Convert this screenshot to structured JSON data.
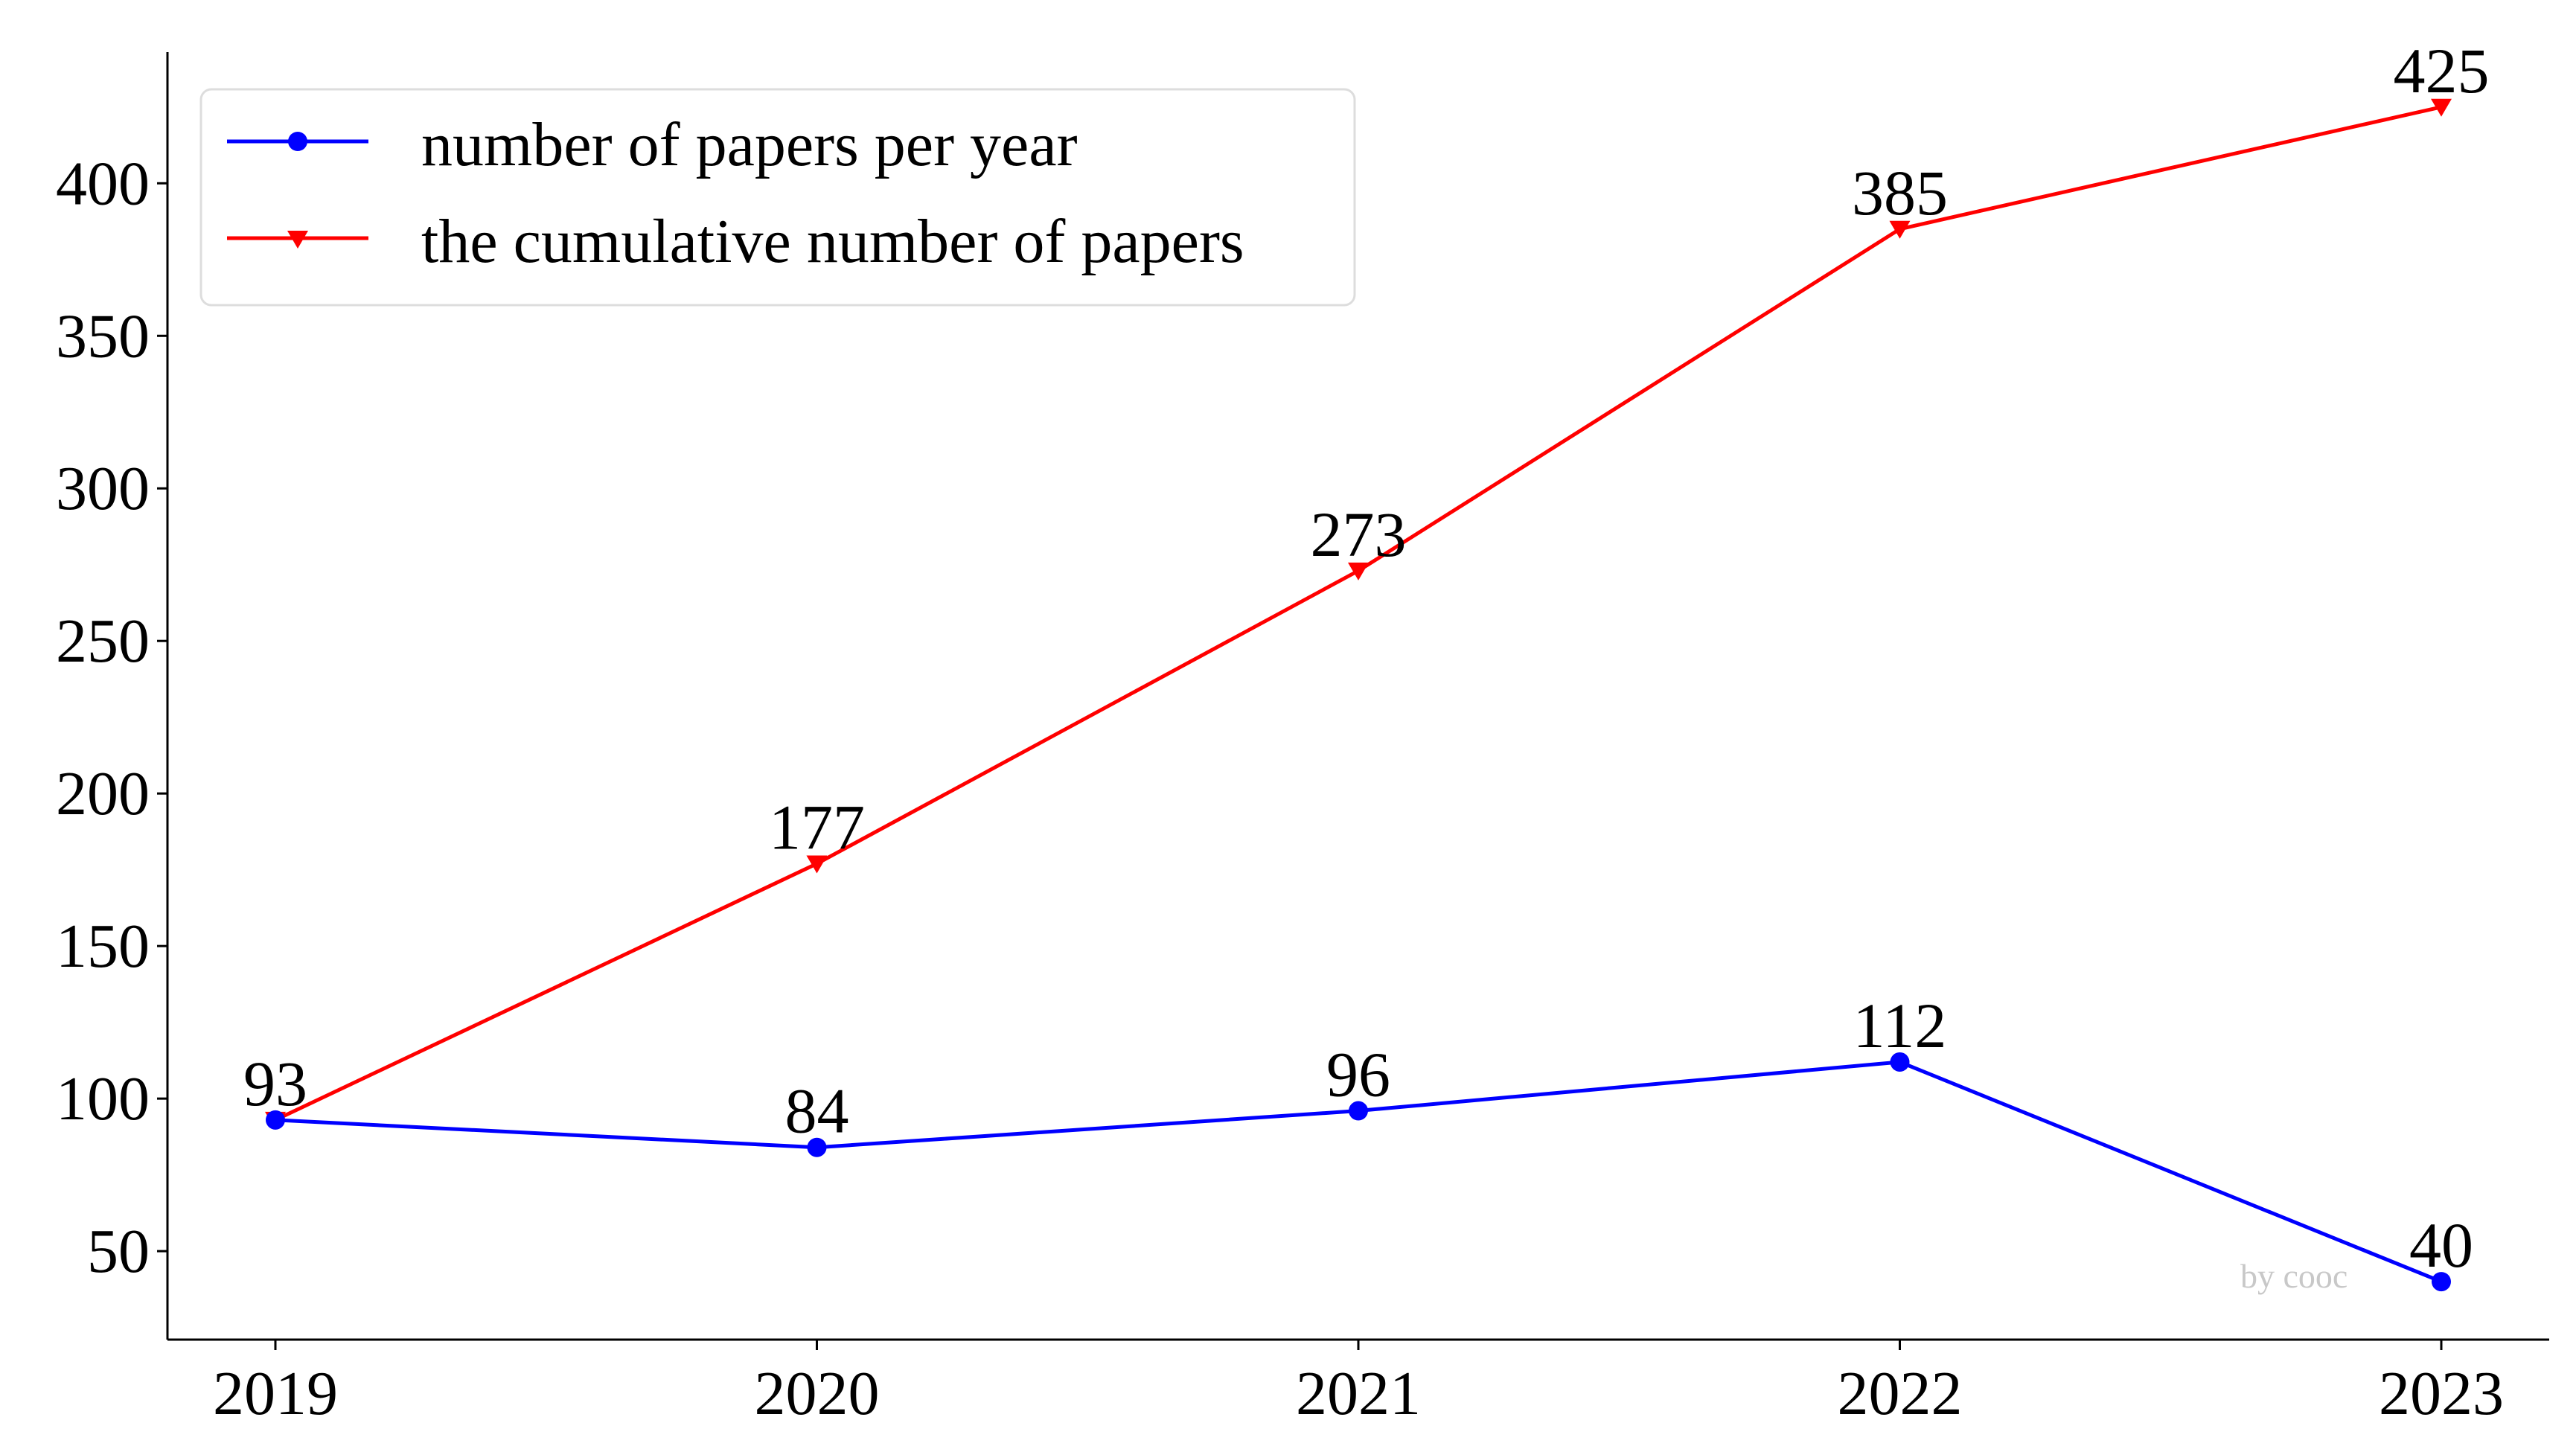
{
  "chart_data": {
    "type": "line",
    "title": "",
    "xlabel": "",
    "ylabel": "",
    "categories": [
      "2019",
      "2020",
      "2021",
      "2022",
      "2023"
    ],
    "yticks": [
      50,
      100,
      150,
      200,
      250,
      300,
      350,
      400
    ],
    "ylim": [
      21,
      443
    ],
    "grid": false,
    "legend_position": "top-left",
    "series": [
      {
        "name": "number of papers per year",
        "color": "#0000ff",
        "marker": "circle",
        "values": [
          93,
          84,
          96,
          112,
          40
        ],
        "labels": [
          "93",
          "84",
          "96",
          "112",
          "40"
        ]
      },
      {
        "name": "the cumulative number of papers",
        "color": "#ff0000",
        "marker": "triangle-down",
        "values": [
          93,
          177,
          273,
          385,
          425
        ],
        "labels": [
          "",
          "177",
          "273",
          "385",
          "425"
        ]
      }
    ],
    "watermark": "by cooc"
  }
}
